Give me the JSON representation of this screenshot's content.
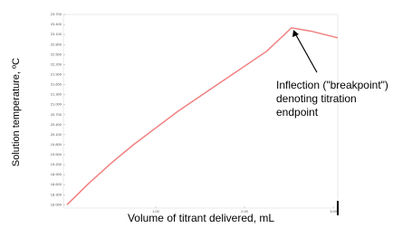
{
  "chart_data": {
    "type": "line",
    "x_label": "Volume of titrant delivered, mL",
    "y_label": "Solution temperature, ºC",
    "annotation": [
      "Inflection (\"breakpoint\")",
      "denoting titration",
      "endpoint"
    ],
    "x": [
      0,
      0.25,
      0.5,
      0.75,
      1.0,
      1.25,
      1.5,
      1.75,
      2.0,
      2.25,
      2.53,
      2.75,
      3.05
    ],
    "series": [
      {
        "color": "#f08080",
        "values": [
          18.0,
          18.65,
          19.25,
          19.8,
          20.3,
          20.8,
          21.25,
          21.7,
          22.15,
          22.6,
          23.3,
          23.2,
          23.0
        ]
      }
    ],
    "xlim": [
      -0.04,
      3.05
    ],
    "xticks": [
      {
        "value": 1,
        "label": "1.00"
      },
      {
        "value": 2,
        "label": "2.00"
      },
      {
        "value": 3,
        "label": "3.00"
      }
    ],
    "ylim": [
      17.9,
      23.7
    ],
    "yticks": [
      {
        "value": 18.0,
        "label": "18.000"
      },
      {
        "value": 18.3,
        "label": "18.300"
      },
      {
        "value": 18.6,
        "label": "18.600"
      },
      {
        "value": 18.9,
        "label": "18.900"
      },
      {
        "value": 19.2,
        "label": "19.200"
      },
      {
        "value": 19.5,
        "label": "19.500"
      },
      {
        "value": 19.8,
        "label": "19.800"
      },
      {
        "value": 20.1,
        "label": "20.100"
      },
      {
        "value": 20.4,
        "label": "20.400"
      },
      {
        "value": 20.7,
        "label": "20.700"
      },
      {
        "value": 21.0,
        "label": "21.000"
      },
      {
        "value": 21.3,
        "label": "21.300"
      },
      {
        "value": 21.6,
        "label": "21.600"
      },
      {
        "value": 21.9,
        "label": "21.900"
      },
      {
        "value": 22.2,
        "label": "22.200"
      },
      {
        "value": 22.5,
        "label": "22.500"
      },
      {
        "value": 22.8,
        "label": "22.800"
      },
      {
        "value": 23.1,
        "label": "23.100"
      },
      {
        "value": 23.4,
        "label": "23.400"
      },
      {
        "value": 23.7,
        "label": "23.700"
      }
    ]
  }
}
